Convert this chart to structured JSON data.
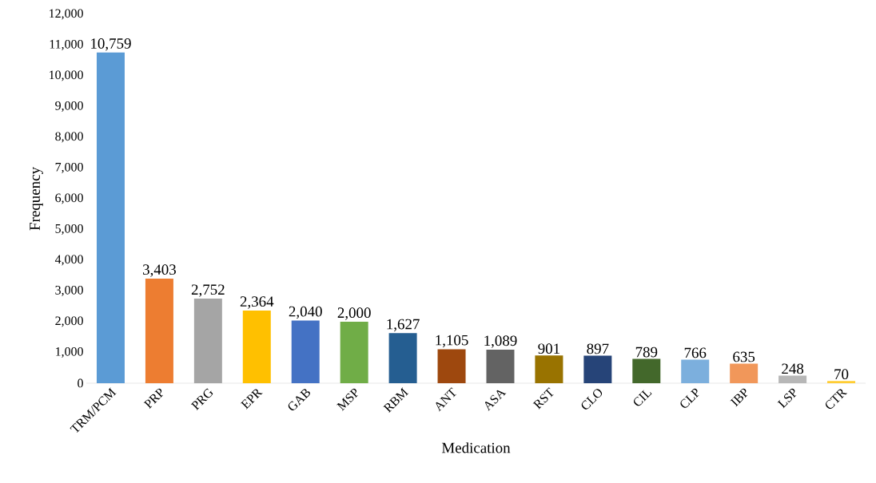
{
  "chart_data": {
    "type": "bar",
    "xlabel": "Medication",
    "ylabel": "Frequency",
    "categories": [
      "TRM/PCM",
      "PRP",
      "PRG",
      "EPR",
      "GAB",
      "MSP",
      "RBM",
      "ANT",
      "ASA",
      "RST",
      "CLO",
      "CIL",
      "CLP",
      "IBP",
      "LSP",
      "CTR"
    ],
    "values": [
      10759,
      3403,
      2752,
      2364,
      2040,
      2000,
      1627,
      1105,
      1089,
      901,
      897,
      789,
      766,
      635,
      248,
      70
    ],
    "colors": [
      "#5b9bd5",
      "#ed7d31",
      "#a5a5a5",
      "#ffc000",
      "#4472c4",
      "#70ad47",
      "#255e91",
      "#9e480e",
      "#636363",
      "#997300",
      "#264478",
      "#43682b",
      "#7cafdd",
      "#f1975a",
      "#b7b7b7",
      "#ffcd33"
    ],
    "value_labels": [
      "10,759",
      "3,403",
      "2,752",
      "2,364",
      "2,040",
      "2,000",
      "1,627",
      "1,105",
      "1,089",
      "901",
      "897",
      "789",
      "766",
      "635",
      "248",
      "70"
    ],
    "ylim": [
      0,
      12000
    ],
    "yticks": [
      0,
      {
        "value": 1000,
        "label": "1,000"
      },
      {
        "value": 2000,
        "label": "2,000"
      },
      {
        "value": 3000,
        "label": "3,000"
      },
      {
        "value": 4000,
        "label": "4,000"
      },
      {
        "value": 5000,
        "label": "5,000"
      },
      {
        "value": 6000,
        "label": "6,000"
      },
      {
        "value": 7000,
        "label": "7,000"
      },
      {
        "value": 8000,
        "label": "8,000"
      },
      {
        "value": 9000,
        "label": "9,000"
      },
      {
        "value": 10000,
        "label": "10,000"
      },
      {
        "value": 11000,
        "label": "11,000"
      },
      {
        "value": 12000,
        "label": "12,000"
      }
    ]
  }
}
